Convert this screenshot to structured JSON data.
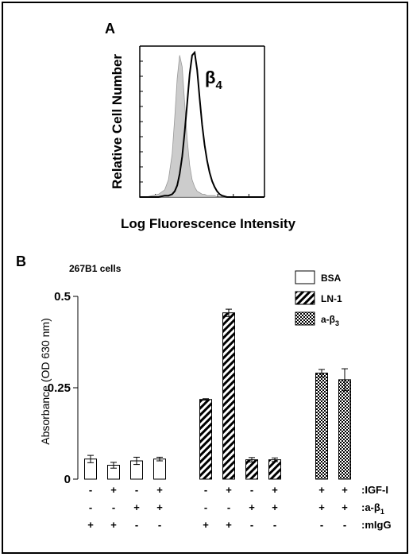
{
  "panels": {
    "a": {
      "label": "A",
      "xlabel": "Log Fluorescence Intensity",
      "ylabel": "Relative Cell Number",
      "peak_label_main": "β",
      "peak_label_sub": "4"
    },
    "b": {
      "label": "B",
      "cell_line": "267B1 cells"
    }
  },
  "legend": [
    {
      "label": "BSA",
      "sub": "",
      "pattern": "open"
    },
    {
      "label": "LN-1",
      "sub": "",
      "pattern": "hatch"
    },
    {
      "label": "a-β",
      "sub": "3",
      "pattern": "check"
    }
  ],
  "condition_rows": [
    {
      "label": ":IGF-I",
      "sub": "",
      "signs": [
        "-",
        "+",
        "-",
        "+",
        "-",
        "+",
        "-",
        "+",
        "+",
        "+"
      ]
    },
    {
      "label": ":a-β",
      "sub": "1",
      "signs": [
        "-",
        "-",
        "+",
        "+",
        "-",
        "-",
        "+",
        "+",
        "+",
        "+"
      ]
    },
    {
      "label": ":mIgG",
      "sub": "",
      "signs": [
        "+",
        "+",
        "-",
        "-",
        "+",
        "+",
        "-",
        "-",
        "-",
        "-"
      ]
    }
  ],
  "colors": {
    "ink": "#000000",
    "isotype_fill": "#cccccc",
    "frame": "#000000"
  },
  "chart_data": [
    {
      "type": "line",
      "title": "",
      "xlabel": "Log Fluorescence Intensity",
      "ylabel": "Relative Cell Number",
      "x": [
        0.0,
        0.05,
        0.1,
        0.15,
        0.2,
        0.23,
        0.26,
        0.28,
        0.3,
        0.32,
        0.34,
        0.36,
        0.38,
        0.4,
        0.42,
        0.44,
        0.46,
        0.48,
        0.5,
        0.52,
        0.54,
        0.56,
        0.58,
        0.6,
        0.62,
        0.64,
        0.66,
        0.7,
        0.75,
        0.8,
        0.9,
        1.0
      ],
      "series": [
        {
          "name": "",
          "fill": true,
          "values": [
            0.0,
            0.0,
            0.01,
            0.02,
            0.05,
            0.12,
            0.3,
            0.55,
            0.82,
            0.98,
            0.9,
            0.65,
            0.4,
            0.22,
            0.12,
            0.07,
            0.04,
            0.03,
            0.02,
            0.02,
            0.01,
            0.01,
            0.01,
            0.01,
            0.0,
            0.0,
            0.0,
            0.0,
            0.0,
            0.0,
            0.0,
            0.0
          ]
        },
        {
          "name": "β4",
          "fill": false,
          "values": [
            0.0,
            0.0,
            0.0,
            0.0,
            0.01,
            0.01,
            0.02,
            0.04,
            0.08,
            0.16,
            0.28,
            0.45,
            0.65,
            0.85,
            0.98,
            1.0,
            0.88,
            0.68,
            0.5,
            0.36,
            0.25,
            0.17,
            0.11,
            0.07,
            0.04,
            0.02,
            0.01,
            0.0,
            0.0,
            0.0,
            0.0,
            0.0
          ]
        }
      ]
    },
    {
      "type": "bar",
      "title": "",
      "xlabel": "",
      "ylabel": "Absorbance (OD 630 nm)",
      "ylim": [
        0,
        0.5
      ],
      "yticks": [
        "0",
        "0.25",
        "0.5"
      ],
      "ytick_values": [
        0,
        0.25,
        0.5
      ],
      "groups": [
        "BSA",
        "LN-1",
        "a-β3"
      ],
      "bars": [
        {
          "group": "BSA",
          "value": 0.055,
          "err": 0.01
        },
        {
          "group": "BSA",
          "value": 0.038,
          "err": 0.008
        },
        {
          "group": "BSA",
          "value": 0.05,
          "err": 0.01
        },
        {
          "group": "BSA",
          "value": 0.055,
          "err": 0.005
        },
        {
          "group": "LN-1",
          "value": 0.218,
          "err": 0.002
        },
        {
          "group": "LN-1",
          "value": 0.455,
          "err": 0.01
        },
        {
          "group": "LN-1",
          "value": 0.053,
          "err": 0.006
        },
        {
          "group": "LN-1",
          "value": 0.053,
          "err": 0.005
        },
        {
          "group": "a-β3",
          "value": 0.29,
          "err": 0.01
        },
        {
          "group": "a-β3",
          "value": 0.272,
          "err": 0.03
        }
      ]
    }
  ]
}
